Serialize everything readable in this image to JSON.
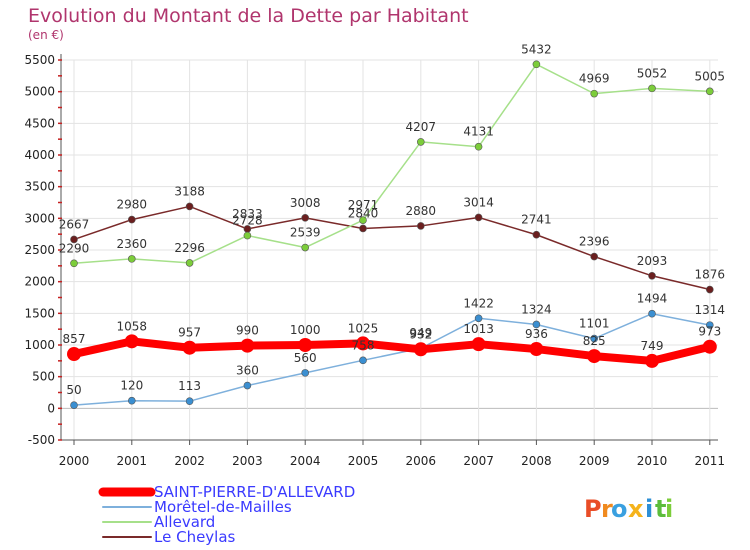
{
  "chart_data": {
    "type": "line",
    "title": "Evolution du Montant de la Dette par Habitant",
    "subtitle": "(en €)",
    "xlabel": "",
    "ylabel": "",
    "categories": [
      "2000",
      "2001",
      "2002",
      "2003",
      "2004",
      "2005",
      "2006",
      "2007",
      "2008",
      "2009",
      "2010",
      "2011"
    ],
    "ylim": [
      -500,
      5500
    ],
    "yticks": [
      -500,
      0,
      500,
      1000,
      1500,
      2000,
      2500,
      3000,
      3500,
      4000,
      4500,
      5000,
      5500
    ],
    "grid": true,
    "legend_position": "bottom",
    "series": [
      {
        "name": "Le Cheylas",
        "color": "#7a2a2a",
        "point_color": "#6b1f1f",
        "width": 1.5,
        "values": [
          2667,
          2980,
          3188,
          2833,
          3008,
          2840,
          2880,
          3014,
          2741,
          2396,
          2093,
          1876
        ]
      },
      {
        "name": "Allevard",
        "color": "#a6e08a",
        "point_color": "#7ccd3a",
        "width": 1.5,
        "values": [
          2290,
          2360,
          2296,
          2728,
          2539,
          2971,
          4207,
          4131,
          5432,
          4969,
          5052,
          5005
        ]
      },
      {
        "name": "Morêtel-de-Mailles",
        "color": "#7eb0dc",
        "point_color": "#3b8fd1",
        "width": 1.5,
        "values": [
          50,
          120,
          113,
          360,
          560,
          758,
          949,
          1422,
          1324,
          1101,
          1494,
          1314
        ]
      },
      {
        "name": "SAINT-PIERRE-D'ALLEVARD",
        "color": "#ff0000",
        "point_color": "#ff0000",
        "width": 8,
        "values": [
          857,
          1058,
          957,
          990,
          1000,
          1025,
          932,
          1013,
          936,
          825,
          749,
          973
        ]
      }
    ],
    "legend_order": [
      "SAINT-PIERRE-D'ALLEVARD",
      "Morêtel-de-Mailles",
      "Allevard",
      "Le Cheylas"
    ]
  },
  "logo": {
    "letters": [
      {
        "ch": "P",
        "color": "#e94d27"
      },
      {
        "ch": "r",
        "color": "#f08a1f"
      },
      {
        "ch": "o",
        "color": "#3aa0e0"
      },
      {
        "ch": "x",
        "color": "#f5b31b"
      },
      {
        "ch": "i",
        "color": "#2d8fd6"
      },
      {
        "ch": "t",
        "color": "#5cbd3b"
      },
      {
        "ch": "i",
        "color": "#7ccd3a"
      }
    ]
  }
}
